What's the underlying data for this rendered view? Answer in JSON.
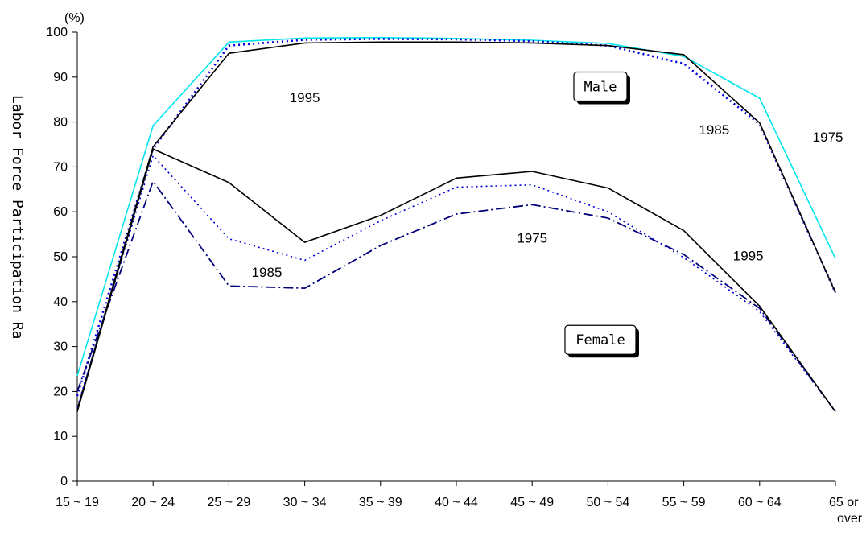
{
  "chart_data": {
    "type": "line",
    "ylabel": "Labor Force Participation Ra",
    "unit": "(%)",
    "ylim": [
      0,
      100
    ],
    "yticks": [
      0,
      10,
      20,
      30,
      40,
      50,
      60,
      70,
      80,
      90,
      100
    ],
    "categories": [
      "15 ~ 19",
      "20 ~ 24",
      "25 ~ 29",
      "30 ~ 34",
      "35 ~ 39",
      "40 ~ 44",
      "45 ~ 49",
      "50 ~ 54",
      "55 ~ 59",
      "60 ~ 64",
      "65 or over"
    ],
    "series": [
      {
        "group": "Male",
        "name": "1975",
        "color": "#00e5ee",
        "dash": "solid",
        "width": 1.6,
        "values": [
          23.5,
          79.2,
          97.8,
          98.7,
          98.8,
          98.6,
          98.2,
          97.5,
          94.6,
          85.3,
          49.6
        ]
      },
      {
        "group": "Male",
        "name": "1985",
        "color": "#0000dd",
        "dash": "dot",
        "width": 2.6,
        "values": [
          19.0,
          74.0,
          97.0,
          98.3,
          98.5,
          98.4,
          98.0,
          97.0,
          93.0,
          79.5,
          42.0
        ]
      },
      {
        "group": "Male",
        "name": "1995",
        "color": "#000000",
        "dash": "solid",
        "width": 1.6,
        "values": [
          16.0,
          74.5,
          95.3,
          97.6,
          97.8,
          97.8,
          97.6,
          97.0,
          95.0,
          79.8,
          42.0
        ]
      },
      {
        "group": "Female",
        "name": "1975",
        "color": "#00007a",
        "dash": "dashdot",
        "width": 1.8,
        "values": [
          20.0,
          66.8,
          43.5,
          43.0,
          52.5,
          59.5,
          61.6,
          58.6,
          50.5,
          38.5,
          15.5
        ]
      },
      {
        "group": "Female",
        "name": "1985",
        "color": "#0000dd",
        "dash": "dot",
        "width": 1.6,
        "values": [
          16.5,
          72.5,
          54.0,
          49.2,
          58.0,
          65.5,
          66.0,
          60.0,
          49.8,
          37.8,
          15.5
        ]
      },
      {
        "group": "Female",
        "name": "1995",
        "color": "#000000",
        "dash": "solid",
        "width": 1.6,
        "values": [
          15.5,
          74.0,
          66.5,
          53.2,
          59.2,
          67.5,
          69.0,
          65.3,
          55.8,
          39.0,
          15.5
        ]
      }
    ],
    "annotations": [
      {
        "text": "1995",
        "cat": 3.0,
        "y": 85.5
      },
      {
        "text": "1985",
        "cat": 8.4,
        "y": 78.3
      },
      {
        "text": "1975",
        "cat": 9.9,
        "y": 76.7
      },
      {
        "text": "1975",
        "cat": 6.0,
        "y": 54.2
      },
      {
        "text": "1985",
        "cat": 2.5,
        "y": 46.6
      },
      {
        "text": "1995",
        "cat": 8.85,
        "y": 50.3
      }
    ],
    "boxes": [
      {
        "text": "Male",
        "cat": 6.9,
        "y": 87.9
      },
      {
        "text": "Female",
        "cat": 6.9,
        "y": 31.5
      }
    ]
  }
}
